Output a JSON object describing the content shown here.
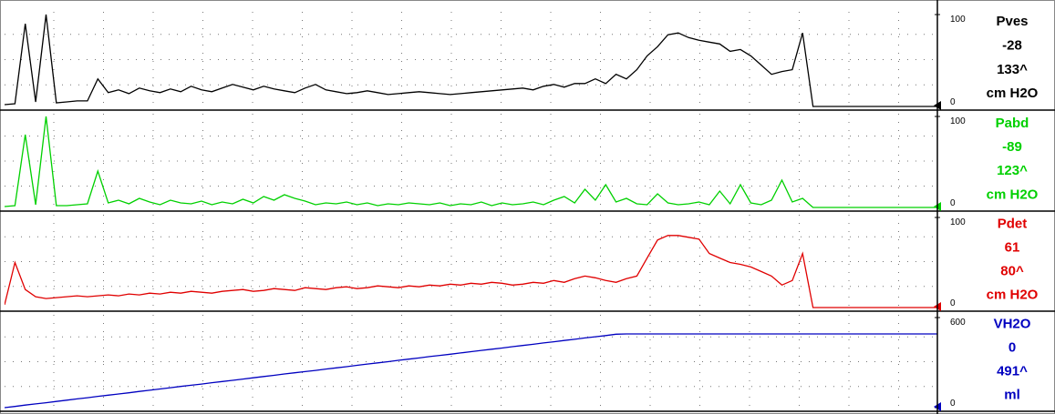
{
  "chart_data": [
    {
      "type": "line",
      "series": [
        {
          "name": "Pves",
          "color": "#000000",
          "values": [
            2,
            3,
            90,
            5,
            100,
            4,
            5,
            6,
            6,
            30,
            15,
            18,
            14,
            20,
            17,
            15,
            19,
            16,
            22,
            18,
            16,
            20,
            24,
            21,
            18,
            22,
            19,
            17,
            15,
            20,
            24,
            18,
            16,
            14,
            15,
            17,
            15,
            13,
            14,
            15,
            16,
            15,
            14,
            13,
            14,
            15,
            16,
            17,
            18,
            19,
            20,
            18,
            22,
            24,
            21,
            25,
            25,
            30,
            25,
            35,
            30,
            40,
            55,
            65,
            78,
            80,
            75,
            72,
            70,
            68,
            60,
            62,
            55,
            45,
            35,
            38,
            40,
            80,
            0,
            0,
            0,
            0,
            0,
            0,
            0,
            0,
            0,
            0,
            0,
            0,
            0
          ]
        }
      ],
      "current": "-28",
      "peak": "133^",
      "unit": "cm H2O",
      "ylim": [
        0,
        100
      ],
      "yticks": [
        0,
        100
      ]
    },
    {
      "type": "line",
      "series": [
        {
          "name": "Pabd",
          "color": "#00d000",
          "values": [
            1,
            2,
            80,
            3,
            100,
            2,
            2,
            3,
            4,
            40,
            5,
            8,
            4,
            10,
            6,
            3,
            8,
            5,
            4,
            7,
            3,
            6,
            4,
            9,
            5,
            12,
            8,
            14,
            10,
            7,
            3,
            5,
            4,
            6,
            3,
            5,
            2,
            4,
            3,
            5,
            4,
            3,
            5,
            2,
            4,
            3,
            6,
            2,
            5,
            3,
            4,
            6,
            3,
            8,
            12,
            5,
            20,
            8,
            25,
            6,
            10,
            4,
            3,
            15,
            5,
            3,
            4,
            6,
            3,
            18,
            4,
            25,
            5,
            3,
            8,
            30,
            6,
            10,
            0,
            0,
            0,
            0,
            0,
            0,
            0,
            0,
            0,
            0,
            0,
            0,
            0
          ]
        }
      ],
      "current": "-89",
      "peak": "123^",
      "unit": "cm H2O",
      "ylim": [
        0,
        100
      ],
      "yticks": [
        0,
        100
      ]
    },
    {
      "type": "line",
      "series": [
        {
          "name": "Pdet",
          "color": "#e00000",
          "values": [
            3,
            50,
            20,
            12,
            10,
            11,
            12,
            13,
            12,
            13,
            14,
            13,
            15,
            14,
            16,
            15,
            17,
            16,
            18,
            17,
            16,
            18,
            19,
            20,
            18,
            19,
            21,
            20,
            19,
            22,
            21,
            20,
            22,
            23,
            21,
            22,
            24,
            23,
            22,
            24,
            23,
            25,
            24,
            26,
            25,
            27,
            26,
            28,
            27,
            25,
            26,
            28,
            27,
            30,
            28,
            32,
            35,
            33,
            30,
            28,
            32,
            35,
            55,
            75,
            80,
            80,
            78,
            76,
            60,
            55,
            50,
            48,
            45,
            40,
            35,
            25,
            30,
            60,
            0,
            0,
            0,
            0,
            0,
            0,
            0,
            0,
            0,
            0,
            0,
            0,
            0
          ]
        }
      ],
      "current": "61",
      "peak": "80^",
      "unit": "cm H2O",
      "ylim": [
        0,
        100
      ],
      "yticks": [
        0,
        100
      ]
    },
    {
      "type": "line",
      "series": [
        {
          "name": "VH2O",
          "color": "#0000c0",
          "values": [
            0,
            8,
            17,
            25,
            33,
            41,
            50,
            58,
            66,
            75,
            83,
            91,
            99,
            108,
            116,
            124,
            133,
            141,
            149,
            157,
            166,
            174,
            182,
            190,
            199,
            207,
            215,
            224,
            232,
            240,
            248,
            257,
            265,
            273,
            282,
            290,
            298,
            306,
            315,
            323,
            331,
            340,
            348,
            356,
            364,
            373,
            381,
            389,
            397,
            406,
            414,
            422,
            431,
            439,
            447,
            455,
            464,
            472,
            480,
            489,
            491,
            491,
            491,
            491,
            491,
            491,
            491,
            491,
            491,
            491,
            491,
            491,
            491,
            491,
            491,
            491,
            491,
            491,
            491,
            491,
            491,
            491,
            491,
            491,
            491,
            491,
            491,
            491,
            491,
            491,
            491
          ]
        }
      ],
      "current": "0",
      "peak": "491^",
      "unit": "ml",
      "ylim": [
        0,
        600
      ],
      "yticks": [
        0,
        600
      ]
    }
  ]
}
